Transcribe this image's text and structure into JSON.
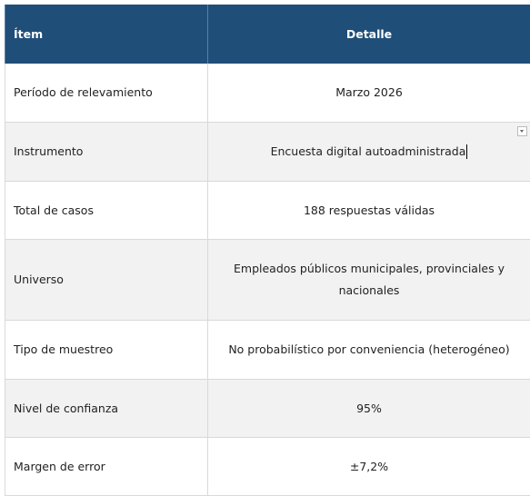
{
  "table": {
    "header": [
      "Ítem",
      "Detalle"
    ],
    "rows": [
      [
        "Período de relevamiento",
        "Marzo 2026"
      ],
      [
        "Instrumento",
        "Encuesta digital autoadministrada"
      ],
      [
        "Total de casos",
        "188 respuestas válidas"
      ],
      [
        "Universo",
        "Empleados públicos municipales, provinciales y nacionales"
      ],
      [
        "Tipo de muestreo",
        "No probabilístico por conveniencia (heterogéneo)"
      ],
      [
        "Nivel de confianza",
        "95%"
      ],
      [
        "Margen de error",
        "±7,2%"
      ]
    ]
  }
}
